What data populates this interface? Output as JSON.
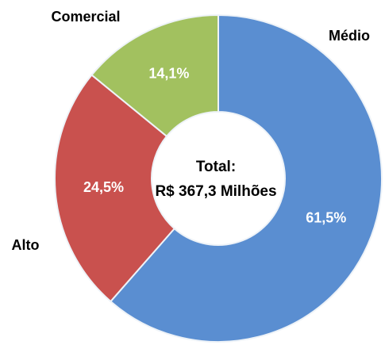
{
  "chart_data": {
    "type": "donut",
    "categories": [
      "Médio",
      "Alto",
      "Comercial"
    ],
    "values": [
      61.5,
      24.5,
      14.1
    ],
    "value_labels": [
      "61,5%",
      "24,5%",
      "14,1%"
    ],
    "colors": [
      "#5a8ed1",
      "#c9514e",
      "#a2c15f"
    ],
    "annotations": [
      "Total:",
      "R$ 367,3 Milhões"
    ]
  }
}
